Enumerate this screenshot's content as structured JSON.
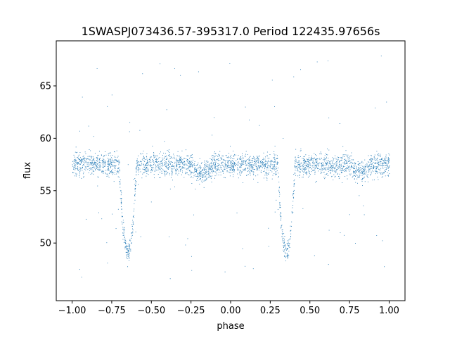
{
  "chart_data": {
    "type": "scatter",
    "title": "1SWASPJ073436.57-395317.0 Period 122435.97656s",
    "xlabel": "phase",
    "ylabel": "flux",
    "xlim": [
      -1.1,
      1.1
    ],
    "ylim": [
      44.5,
      69.3
    ],
    "x_ticks": [
      -1.0,
      -0.75,
      -0.5,
      -0.25,
      0.0,
      0.25,
      0.5,
      0.75,
      1.0
    ],
    "x_tick_labels": [
      "−1.00",
      "−0.75",
      "−0.50",
      "−0.25",
      "0.00",
      "0.25",
      "0.50",
      "0.75",
      "1.00"
    ],
    "y_ticks": [
      50,
      55,
      60,
      65
    ],
    "y_tick_labels": [
      "50",
      "55",
      "60",
      "65"
    ],
    "grid": false,
    "marker_color": "#1f77b4",
    "light_curve": {
      "phase_range": [
        -1.0,
        1.0
      ],
      "baseline_flux": 57.5,
      "scatter_sigma": 0.55,
      "primary_eclipse": {
        "phases": [
          -0.65,
          0.35
        ],
        "min_flux": 49.2,
        "half_width": 0.055
      },
      "secondary_eclipse": {
        "phases": [
          -0.175,
          0.825
        ],
        "min_flux": 56.7,
        "half_width": 0.055
      },
      "outlier_range": [
        46.5,
        68.0
      ]
    }
  }
}
